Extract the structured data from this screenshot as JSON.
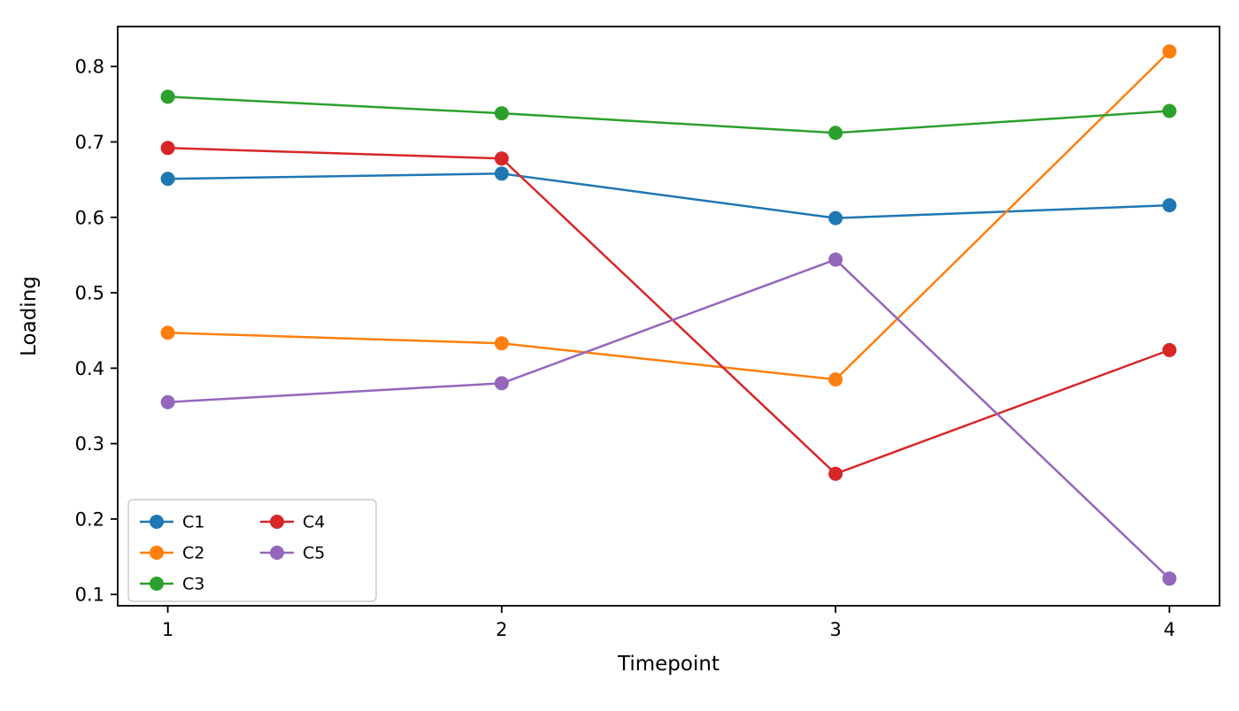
{
  "chart_data": {
    "type": "line",
    "title": "",
    "xlabel": "Timepoint",
    "ylabel": "Loading",
    "x": [
      1,
      2,
      3,
      4
    ],
    "series": [
      {
        "name": "C1",
        "color": "#1f77b4",
        "values": [
          0.651,
          0.658,
          0.599,
          0.616
        ]
      },
      {
        "name": "C2",
        "color": "#ff7f0e",
        "values": [
          0.447,
          0.433,
          0.385,
          0.82
        ]
      },
      {
        "name": "C3",
        "color": "#2ca02c",
        "values": [
          0.76,
          0.738,
          0.712,
          0.741
        ]
      },
      {
        "name": "C4",
        "color": "#d62728",
        "values": [
          0.692,
          0.678,
          0.26,
          0.424
        ]
      },
      {
        "name": "C5",
        "color": "#9467bd",
        "values": [
          0.355,
          0.38,
          0.544,
          0.121
        ]
      }
    ],
    "xticks": [
      1,
      2,
      3,
      4
    ],
    "xtick_labels": [
      "1",
      "2",
      "3",
      "4"
    ],
    "yticks": [
      0.1,
      0.2,
      0.3,
      0.4,
      0.5,
      0.6,
      0.7,
      0.8
    ],
    "ytick_labels": [
      "0.1",
      "0.2",
      "0.3",
      "0.4",
      "0.5",
      "0.6",
      "0.7",
      "0.8"
    ],
    "xlim": [
      0.85,
      4.15
    ],
    "ylim": [
      0.085,
      0.853
    ],
    "grid": false,
    "legend": {
      "position": "lower-left",
      "columns": 2,
      "entries": [
        "C1",
        "C2",
        "C3",
        "C4",
        "C5"
      ]
    },
    "style": {
      "line_width": 2.5,
      "marker": "circle",
      "marker_radius": 8,
      "axis_color": "#000000",
      "legend_edge_color": "#cccccc",
      "background": "#ffffff"
    }
  }
}
